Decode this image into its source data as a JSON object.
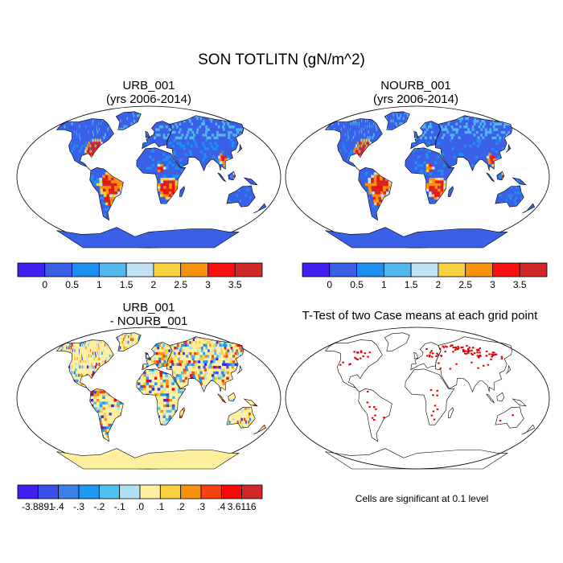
{
  "figure": {
    "title": "SON TOTLITN (gN/m^2)",
    "panels": [
      {
        "title_line1": "URB_001",
        "title_line2": "(yrs 2006-2014)"
      },
      {
        "title_line1": "NOURB_001",
        "title_line2": "(yrs 2006-2014)"
      },
      {
        "title_line1": "URB_001",
        "title_line2": "- NOURB_001"
      },
      {
        "title_line1": "T-Test of two Case means at each grid point",
        "title_line2": ""
      }
    ],
    "significance_note": "Cells are significant at 0.1 level"
  },
  "colorbars": {
    "absolute": {
      "labels": [
        "0",
        "0.5",
        "1",
        "1.5",
        "2",
        "2.5",
        "3",
        "3.5"
      ],
      "colors": [
        "#4020f0",
        "#3a60e8",
        "#1e90f0",
        "#50b8ee",
        "#c0e4f4",
        "#f8d040",
        "#f89010",
        "#f81010",
        "#d02828"
      ]
    },
    "difference": {
      "labels": [
        "-3.8891",
        "-.4",
        "-.3",
        "-.2",
        "-.1",
        ".0",
        ".1",
        ".2",
        ".3",
        ".4",
        "3.6116"
      ],
      "colors": [
        "#4020f0",
        "#3a50e8",
        "#3a80e8",
        "#1e98f0",
        "#50c0ee",
        "#b0e0f4",
        "#fff0a0",
        "#f8d040",
        "#f89010",
        "#f84010",
        "#f80808",
        "#d02828"
      ]
    }
  },
  "map_colors": {
    "ocean": "#ffffff",
    "coast": "#000000",
    "abs_land_base": "#3a60e8",
    "diff_land_base": "#fff0a0",
    "ttest_sig": "#e00000"
  }
}
